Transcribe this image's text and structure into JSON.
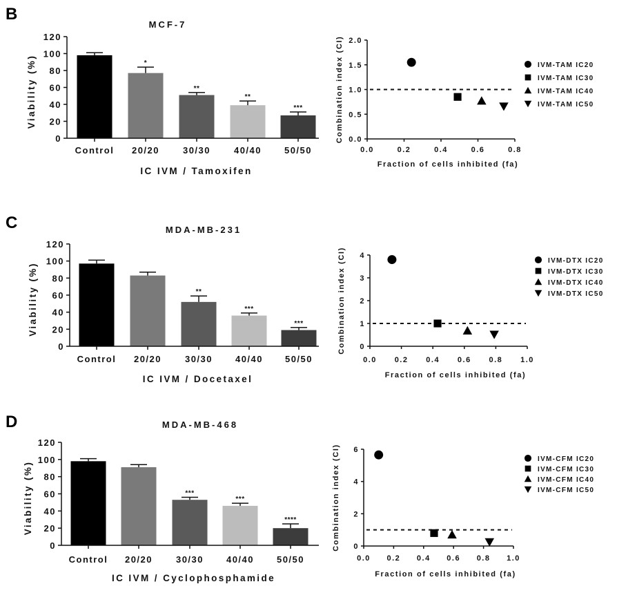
{
  "figure": {
    "panels": [
      {
        "letter": "B",
        "bar": {
          "title": "MCF-7",
          "ylabel": "Viability (%)",
          "xlabel": "IC IVM / Tamoxifen",
          "yticks": [
            "0",
            "20",
            "40",
            "60",
            "80",
            "100",
            "120"
          ],
          "categories": [
            "Control",
            "20/20",
            "30/30",
            "40/40",
            "50/50"
          ]
        },
        "scatter": {
          "ylabel": "Combination index (CI)",
          "xlabel": "Fraction of cells inhibited (fa)",
          "xticks": [
            "0.0",
            "0.2",
            "0.4",
            "0.6",
            "0.8"
          ],
          "yticks": [
            "0.0",
            "0.5",
            "1.0",
            "1.5",
            "2.0"
          ],
          "legend": [
            "IVM-TAM IC20",
            "IVM-TAM IC30",
            "IVM-TAM IC40",
            "IVM-TAM IC50"
          ]
        }
      },
      {
        "letter": "C",
        "bar": {
          "title": "MDA-MB-231",
          "ylabel": "Viability (%)",
          "xlabel": "IC IVM / Docetaxel",
          "yticks": [
            "0",
            "20",
            "40",
            "60",
            "80",
            "100",
            "120"
          ],
          "categories": [
            "Control",
            "20/20",
            "30/30",
            "40/40",
            "50/50"
          ]
        },
        "scatter": {
          "ylabel": "Combination index (CI)",
          "xlabel": "Fraction of cells inhibited (fa)",
          "xticks": [
            "0.0",
            "0.2",
            "0.4",
            "0.6",
            "0.8",
            "1.0"
          ],
          "yticks": [
            "0",
            "1",
            "2",
            "3",
            "4"
          ],
          "legend": [
            "IVM-DTX IC20",
            "IVM-DTX IC30",
            "IVM-DTX IC40",
            "IVM-DTX IC50"
          ]
        }
      },
      {
        "letter": "D",
        "bar": {
          "title": "MDA-MB-468",
          "ylabel": "Viability (%)",
          "xlabel": "IC IVM / Cyclophosphamide",
          "yticks": [
            "0",
            "20",
            "40",
            "60",
            "80",
            "100",
            "120"
          ],
          "categories": [
            "Control",
            "20/20",
            "30/30",
            "40/40",
            "50/50"
          ]
        },
        "scatter": {
          "ylabel": "Combination index (CI)",
          "xlabel": "Fraction of cells inhibited (fa)",
          "xticks": [
            "0.0",
            "0.2",
            "0.4",
            "0.6",
            "0.8",
            "1.0"
          ],
          "yticks": [
            "0",
            "2",
            "4",
            "6"
          ],
          "legend": [
            "IVM-CFM IC20",
            "IVM-CFM IC30",
            "IVM-CFM IC40",
            "IVM-CFM IC50"
          ]
        }
      }
    ]
  },
  "colors": {
    "bars": [
      "#000000",
      "#7a7a7a",
      "#5a5a5a",
      "#bcbcbc",
      "#3c3c3c"
    ],
    "axis": "#111111"
  },
  "chart_data": [
    {
      "type": "bar",
      "panel": "B",
      "title": "MCF-7",
      "categories": [
        "Control",
        "20/20",
        "30/30",
        "40/40",
        "50/50"
      ],
      "values": [
        98,
        77,
        51,
        39,
        27
      ],
      "errors": [
        3,
        7,
        3,
        5,
        4
      ],
      "significance": [
        "",
        "*",
        "**",
        "**",
        "***"
      ],
      "xlabel": "IC IVM / Tamoxifen",
      "ylabel": "Viability (%)",
      "ylim": [
        0,
        120
      ],
      "yticks": [
        0,
        20,
        40,
        60,
        80,
        100,
        120
      ]
    },
    {
      "type": "scatter",
      "panel": "B",
      "series": [
        {
          "name": "IVM-TAM IC20",
          "marker": "circle",
          "x": 0.24,
          "y": 1.55
        },
        {
          "name": "IVM-TAM IC30",
          "marker": "square",
          "x": 0.49,
          "y": 0.85
        },
        {
          "name": "IVM-TAM IC40",
          "marker": "triangle-up",
          "x": 0.62,
          "y": 0.77
        },
        {
          "name": "IVM-TAM IC50",
          "marker": "triangle-down",
          "x": 0.74,
          "y": 0.66
        }
      ],
      "reference_line": {
        "y": 1.0,
        "style": "dashed"
      },
      "xlabel": "Fraction of cells inhibited (fa)",
      "ylabel": "Combination index (CI)",
      "xlim": [
        0,
        0.8
      ],
      "ylim": [
        0,
        2.0
      ],
      "xticks": [
        0,
        0.2,
        0.4,
        0.6,
        0.8
      ],
      "yticks": [
        0,
        0.5,
        1.0,
        1.5,
        2.0
      ],
      "legend_position": "right"
    },
    {
      "type": "bar",
      "panel": "C",
      "title": "MDA-MB-231",
      "categories": [
        "Control",
        "20/20",
        "30/30",
        "40/40",
        "50/50"
      ],
      "values": [
        97,
        83,
        52,
        36,
        19
      ],
      "errors": [
        4,
        4,
        7,
        3,
        3
      ],
      "significance": [
        "",
        "",
        "**",
        "***",
        "***"
      ],
      "xlabel": "IC IVM / Docetaxel",
      "ylabel": "Viability (%)",
      "ylim": [
        0,
        120
      ],
      "yticks": [
        0,
        20,
        40,
        60,
        80,
        100,
        120
      ]
    },
    {
      "type": "scatter",
      "panel": "C",
      "series": [
        {
          "name": "IVM-DTX IC20",
          "marker": "circle",
          "x": 0.14,
          "y": 3.8
        },
        {
          "name": "IVM-DTX IC30",
          "marker": "square",
          "x": 0.43,
          "y": 1.0
        },
        {
          "name": "IVM-DTX IC40",
          "marker": "triangle-up",
          "x": 0.62,
          "y": 0.68
        },
        {
          "name": "IVM-DTX IC50",
          "marker": "triangle-down",
          "x": 0.79,
          "y": 0.52
        }
      ],
      "reference_line": {
        "y": 1.0,
        "style": "dashed"
      },
      "xlabel": "Fraction of cells inhibited (fa)",
      "ylabel": "Combination index (CI)",
      "xlim": [
        0,
        1.0
      ],
      "ylim": [
        0,
        4
      ],
      "xticks": [
        0,
        0.2,
        0.4,
        0.6,
        0.8,
        1.0
      ],
      "yticks": [
        0,
        1,
        2,
        3,
        4
      ],
      "legend_position": "right"
    },
    {
      "type": "bar",
      "panel": "D",
      "title": "MDA-MB-468",
      "categories": [
        "Control",
        "20/20",
        "30/30",
        "40/40",
        "50/50"
      ],
      "values": [
        98,
        91,
        53,
        46,
        20
      ],
      "errors": [
        3,
        3,
        3,
        3,
        5
      ],
      "significance": [
        "",
        "",
        "***",
        "***",
        "****"
      ],
      "xlabel": "IC IVM / Cyclophosphamide",
      "ylabel": "Viability (%)",
      "ylim": [
        0,
        120
      ],
      "yticks": [
        0,
        20,
        40,
        60,
        80,
        100,
        120
      ]
    },
    {
      "type": "scatter",
      "panel": "D",
      "series": [
        {
          "name": "IVM-CFM IC20",
          "marker": "circle",
          "x": 0.1,
          "y": 5.65
        },
        {
          "name": "IVM-CFM IC30",
          "marker": "square",
          "x": 0.47,
          "y": 0.8
        },
        {
          "name": "IVM-CFM IC40",
          "marker": "triangle-up",
          "x": 0.59,
          "y": 0.7
        },
        {
          "name": "IVM-CFM IC50",
          "marker": "triangle-down",
          "x": 0.84,
          "y": 0.25
        }
      ],
      "reference_line": {
        "y": 1.0,
        "style": "dashed"
      },
      "xlabel": "Fraction of cells inhibited (fa)",
      "ylabel": "Combination index (CI)",
      "xlim": [
        0,
        1.0
      ],
      "ylim": [
        0,
        6
      ],
      "xticks": [
        0,
        0.2,
        0.4,
        0.6,
        0.8,
        1.0
      ],
      "yticks": [
        0,
        2,
        4,
        6
      ],
      "legend_position": "right"
    }
  ]
}
